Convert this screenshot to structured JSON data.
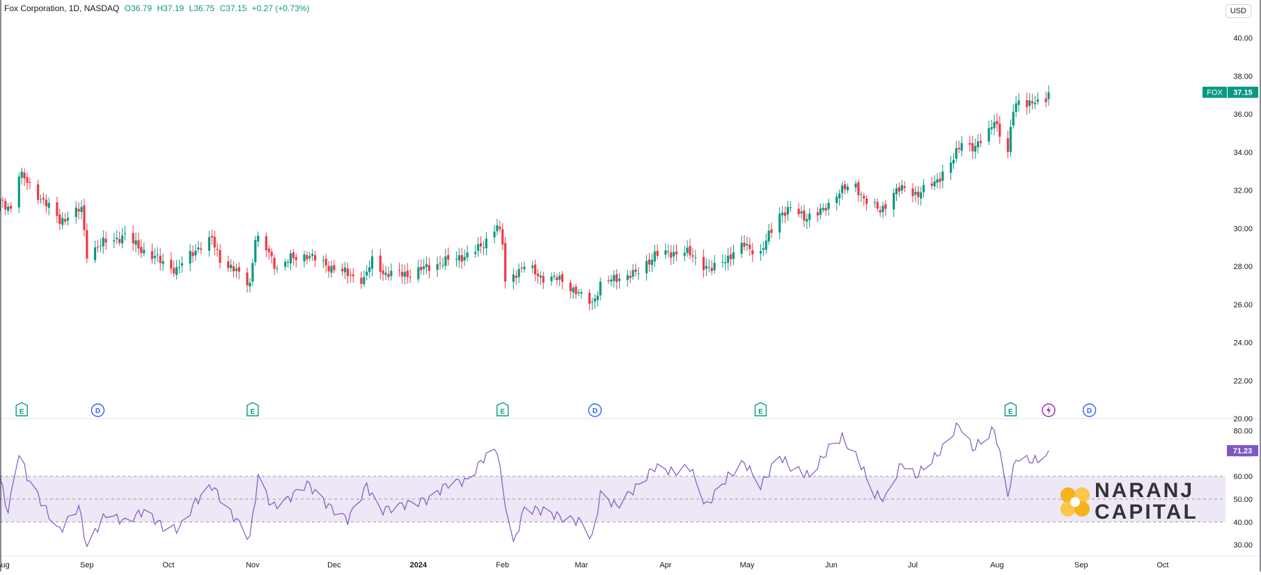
{
  "header": {
    "symbol": "Fox Corporation, 1D, NASDAQ",
    "open": "O36.79",
    "high": "H37.19",
    "low": "L36.75",
    "close": "C37.15",
    "change": "+0.27 (+0.73%)"
  },
  "currency": "USD",
  "price_label": {
    "ticker": "FOX",
    "value": "37.15"
  },
  "rsi_label": "71.23",
  "brand": {
    "line1": "NARANJ",
    "line2": "CAPITAL"
  },
  "colors": {
    "up": "#089981",
    "down": "#f23645",
    "rsi": "#7e57c2",
    "rsi_band": "#ede7f6",
    "brand_gold": "#f6b21b"
  },
  "events": [
    {
      "type": "E",
      "date": "2023-08-08"
    },
    {
      "type": "D",
      "date": "2023-09-05"
    },
    {
      "type": "E",
      "date": "2023-11-01"
    },
    {
      "type": "E",
      "date": "2024-02-01"
    },
    {
      "type": "D",
      "date": "2024-03-06"
    },
    {
      "type": "E",
      "date": "2024-05-06"
    },
    {
      "type": "E",
      "date": "2024-08-06"
    },
    {
      "type": "S",
      "date": "2024-08-20"
    },
    {
      "type": "D",
      "date": "2024-09-04"
    }
  ],
  "chart_data": [
    {
      "type": "candlestick",
      "title": "Fox Corporation, 1D, NASDAQ",
      "ylim": [
        20,
        42
      ],
      "yticks": [
        20.0,
        22.0,
        24.0,
        26.0,
        28.0,
        30.0,
        32.0,
        34.0,
        36.0,
        38.0,
        40.0
      ],
      "x_range": [
        "2023-07-31",
        "2024-10-10"
      ],
      "x_ticks": [
        {
          "label": "Aug",
          "date": "2023-08-01"
        },
        {
          "label": "Sep",
          "date": "2023-09-01"
        },
        {
          "label": "Oct",
          "date": "2023-10-01"
        },
        {
          "label": "Nov",
          "date": "2023-11-01"
        },
        {
          "label": "Dec",
          "date": "2023-12-01"
        },
        {
          "label": "2024",
          "date": "2024-01-01"
        },
        {
          "label": "Feb",
          "date": "2024-02-01"
        },
        {
          "label": "Mar",
          "date": "2024-03-01"
        },
        {
          "label": "Apr",
          "date": "2024-04-01"
        },
        {
          "label": "May",
          "date": "2024-05-01"
        },
        {
          "label": "Jun",
          "date": "2024-06-01"
        },
        {
          "label": "Jul",
          "date": "2024-07-01"
        },
        {
          "label": "Aug",
          "date": "2024-08-01"
        },
        {
          "label": "Sep",
          "date": "2024-09-01"
        },
        {
          "label": "Oct",
          "date": "2024-10-01"
        }
      ],
      "series_close_anchors": [
        [
          "2023-07-31",
          31.3
        ],
        [
          "2023-08-04",
          31.1
        ],
        [
          "2023-08-07",
          32.9
        ],
        [
          "2023-08-10",
          32.4
        ],
        [
          "2023-08-15",
          31.6
        ],
        [
          "2023-08-22",
          30.4
        ],
        [
          "2023-08-30",
          31.0
        ],
        [
          "2023-09-01",
          28.7
        ],
        [
          "2023-09-08",
          29.3
        ],
        [
          "2023-09-15",
          29.6
        ],
        [
          "2023-09-22",
          28.8
        ],
        [
          "2023-09-29",
          28.2
        ],
        [
          "2023-10-04",
          27.8
        ],
        [
          "2023-10-11",
          28.9
        ],
        [
          "2023-10-17",
          29.4
        ],
        [
          "2023-10-20",
          28.4
        ],
        [
          "2023-10-26",
          27.7
        ],
        [
          "2023-10-31",
          27.1
        ],
        [
          "2023-11-02",
          29.5
        ],
        [
          "2023-11-07",
          28.7
        ],
        [
          "2023-11-10",
          27.9
        ],
        [
          "2023-11-15",
          28.4
        ],
        [
          "2023-11-21",
          28.6
        ],
        [
          "2023-11-29",
          28.0
        ],
        [
          "2023-12-06",
          27.6
        ],
        [
          "2023-12-12",
          27.3
        ],
        [
          "2023-12-15",
          28.3
        ],
        [
          "2023-12-20",
          27.6
        ],
        [
          "2023-12-29",
          27.6
        ],
        [
          "2024-01-05",
          28.0
        ],
        [
          "2024-01-12",
          28.3
        ],
        [
          "2024-01-19",
          28.6
        ],
        [
          "2024-01-24",
          29.0
        ],
        [
          "2024-01-30",
          30.2
        ],
        [
          "2024-02-01",
          29.2
        ],
        [
          "2024-02-02",
          27.1
        ],
        [
          "2024-02-06",
          27.7
        ],
        [
          "2024-02-09",
          28.0
        ],
        [
          "2024-02-16",
          27.4
        ],
        [
          "2024-02-23",
          27.3
        ],
        [
          "2024-03-01",
          26.4
        ],
        [
          "2024-03-05",
          26.1
        ],
        [
          "2024-03-08",
          27.0
        ],
        [
          "2024-03-14",
          27.4
        ],
        [
          "2024-03-21",
          27.6
        ],
        [
          "2024-03-28",
          28.6
        ],
        [
          "2024-04-03",
          28.7
        ],
        [
          "2024-04-08",
          28.8
        ],
        [
          "2024-04-12",
          28.4
        ],
        [
          "2024-04-18",
          27.8
        ],
        [
          "2024-04-24",
          28.5
        ],
        [
          "2024-04-30",
          29.1
        ],
        [
          "2024-05-06",
          28.7
        ],
        [
          "2024-05-09",
          29.6
        ],
        [
          "2024-05-13",
          30.8
        ],
        [
          "2024-05-17",
          31.0
        ],
        [
          "2024-05-22",
          30.6
        ],
        [
          "2024-05-29",
          30.9
        ],
        [
          "2024-06-04",
          32.0
        ],
        [
          "2024-06-10",
          32.2
        ],
        [
          "2024-06-14",
          31.4
        ],
        [
          "2024-06-19",
          30.9
        ],
        [
          "2024-06-24",
          31.9
        ],
        [
          "2024-06-28",
          32.1
        ],
        [
          "2024-07-03",
          31.8
        ],
        [
          "2024-07-09",
          32.4
        ],
        [
          "2024-07-12",
          32.9
        ],
        [
          "2024-07-16",
          33.6
        ],
        [
          "2024-07-19",
          34.6
        ],
        [
          "2024-07-24",
          34.2
        ],
        [
          "2024-07-29",
          35.1
        ],
        [
          "2024-07-31",
          35.8
        ],
        [
          "2024-08-02",
          34.9
        ],
        [
          "2024-08-05",
          33.9
        ],
        [
          "2024-08-07",
          36.3
        ],
        [
          "2024-08-09",
          36.8
        ],
        [
          "2024-08-13",
          36.5
        ],
        [
          "2024-08-16",
          36.6
        ],
        [
          "2024-08-19",
          36.88
        ],
        [
          "2024-08-20",
          37.15
        ]
      ],
      "last": {
        "open": 36.79,
        "high": 37.19,
        "low": 36.75,
        "close": 37.15
      }
    },
    {
      "type": "line",
      "ylim": [
        25,
        85
      ],
      "yticks": [
        30.0,
        40.0,
        50.0,
        60.0,
        70.0,
        80.0
      ],
      "band": [
        40,
        60
      ],
      "midline": 50,
      "series": [
        {
          "values_anchors": [
            [
              "2023-07-31",
              59
            ],
            [
              "2023-08-03",
              44
            ],
            [
              "2023-08-07",
              71
            ],
            [
              "2023-08-10",
              60
            ],
            [
              "2023-08-15",
              49
            ],
            [
              "2023-08-22",
              36
            ],
            [
              "2023-08-29",
              47
            ],
            [
              "2023-09-01",
              29
            ],
            [
              "2023-09-08",
              44
            ],
            [
              "2023-09-15",
              40
            ],
            [
              "2023-09-22",
              45
            ],
            [
              "2023-09-29",
              38
            ],
            [
              "2023-10-05",
              37
            ],
            [
              "2023-10-11",
              49
            ],
            [
              "2023-10-17",
              56
            ],
            [
              "2023-10-24",
              44
            ],
            [
              "2023-10-31",
              33
            ],
            [
              "2023-11-03",
              60
            ],
            [
              "2023-11-08",
              47
            ],
            [
              "2023-11-14",
              50
            ],
            [
              "2023-11-21",
              57
            ],
            [
              "2023-11-29",
              47
            ],
            [
              "2023-12-06",
              41
            ],
            [
              "2023-12-13",
              56
            ],
            [
              "2023-12-18",
              45
            ],
            [
              "2023-12-28",
              48
            ],
            [
              "2024-01-05",
              50
            ],
            [
              "2024-01-12",
              57
            ],
            [
              "2024-01-19",
              58
            ],
            [
              "2024-01-25",
              68
            ],
            [
              "2024-01-30",
              72
            ],
            [
              "2024-02-01",
              55
            ],
            [
              "2024-02-05",
              30
            ],
            [
              "2024-02-09",
              46
            ],
            [
              "2024-02-16",
              45
            ],
            [
              "2024-02-23",
              42
            ],
            [
              "2024-03-01",
              40
            ],
            [
              "2024-03-05",
              33
            ],
            [
              "2024-03-08",
              52
            ],
            [
              "2024-03-14",
              47
            ],
            [
              "2024-03-21",
              55
            ],
            [
              "2024-03-28",
              64
            ],
            [
              "2024-04-04",
              62
            ],
            [
              "2024-04-10",
              64
            ],
            [
              "2024-04-16",
              47
            ],
            [
              "2024-04-24",
              60
            ],
            [
              "2024-04-30",
              66
            ],
            [
              "2024-05-06",
              56
            ],
            [
              "2024-05-13",
              69
            ],
            [
              "2024-05-17",
              64
            ],
            [
              "2024-05-24",
              60
            ],
            [
              "2024-05-31",
              72
            ],
            [
              "2024-06-05",
              77
            ],
            [
              "2024-06-11",
              67
            ],
            [
              "2024-06-17",
              52
            ],
            [
              "2024-06-21",
              50
            ],
            [
              "2024-06-27",
              66
            ],
            [
              "2024-07-02",
              60
            ],
            [
              "2024-07-08",
              67
            ],
            [
              "2024-07-12",
              72
            ],
            [
              "2024-07-18",
              83
            ],
            [
              "2024-07-23",
              72
            ],
            [
              "2024-07-29",
              78
            ],
            [
              "2024-07-31",
              81
            ],
            [
              "2024-08-05",
              52
            ],
            [
              "2024-08-08",
              68
            ],
            [
              "2024-08-12",
              67
            ],
            [
              "2024-08-16",
              67
            ],
            [
              "2024-08-20",
              71.23
            ]
          ]
        }
      ]
    }
  ]
}
